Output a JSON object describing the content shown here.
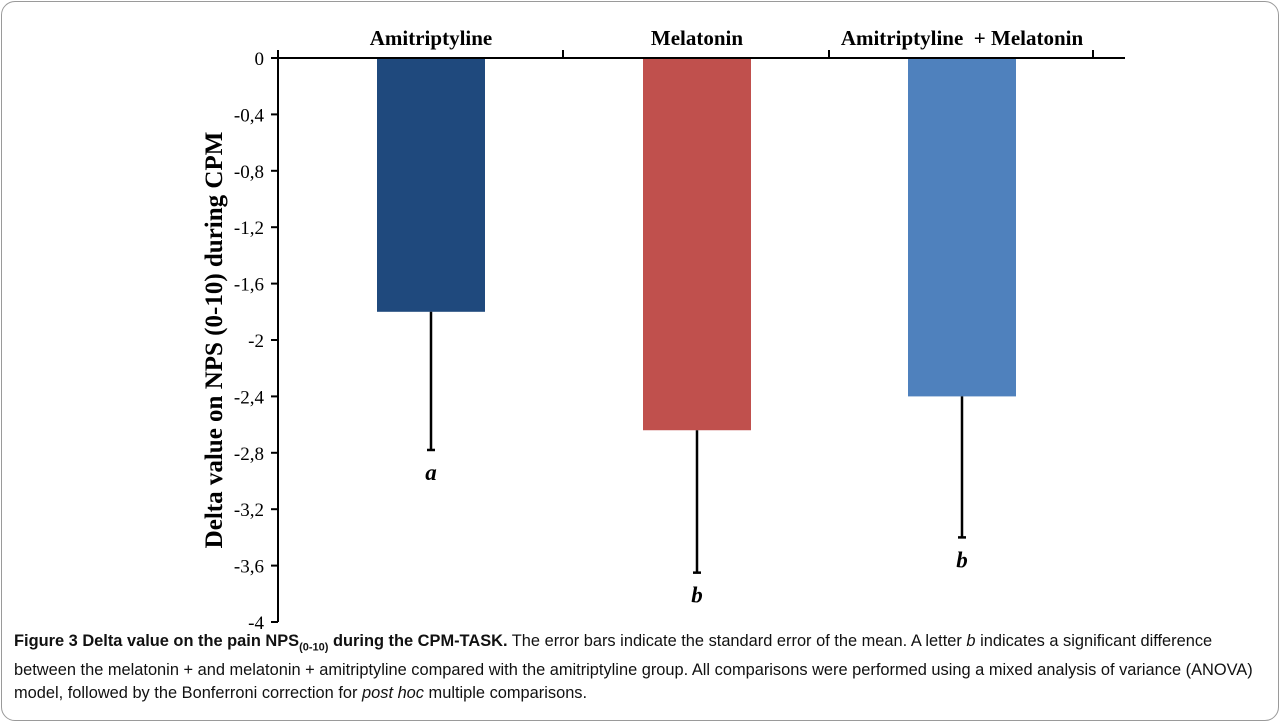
{
  "chart_data": {
    "type": "bar",
    "categories": [
      "Amitriptyline",
      "Melatonin",
      "Amitriptyline  + Melatonin"
    ],
    "values": [
      -1.8,
      -2.64,
      -2.4
    ],
    "errors": [
      0.98,
      1.01,
      1.0
    ],
    "significance_letters": [
      "a",
      "b",
      "b"
    ],
    "colors": [
      "#1f497d",
      "#c0504d",
      "#4f81bd"
    ],
    "ylabel": "Delta value on NPS (0-10) during CPM",
    "ylim": [
      -4,
      0
    ],
    "yticks": [
      0,
      -0.4,
      -0.8,
      -1.2,
      -1.6,
      -2,
      -2.4,
      -2.8,
      -3.2,
      -3.6,
      -4
    ],
    "ytick_labels": [
      "0",
      "-0,4",
      "-0,8",
      "-1,2",
      "-1,6",
      "-2",
      "-2,4",
      "-2,8",
      "-3,2",
      "-3,6",
      "-4"
    ],
    "category_label_position": "top",
    "grid": false,
    "legend": "none"
  },
  "caption": {
    "label": "Figure 3",
    "title_pre": "Delta value on the pain NPS",
    "title_sub": "(0-10)",
    "title_post": " during the CPM-TASK.",
    "text_1": " The error bars indicate the standard error of the mean. A letter ",
    "letter": "b",
    "text_2": " indicates a significant difference between the melatonin + and melatonin + amitriptyline compared with the amitriptyline group. All comparisons were performed using a mixed analysis of variance (ANOVA) model, followed by the Bonferroni correction for ",
    "italic_phrase": "post hoc",
    "text_3": " multiple comparisons."
  }
}
